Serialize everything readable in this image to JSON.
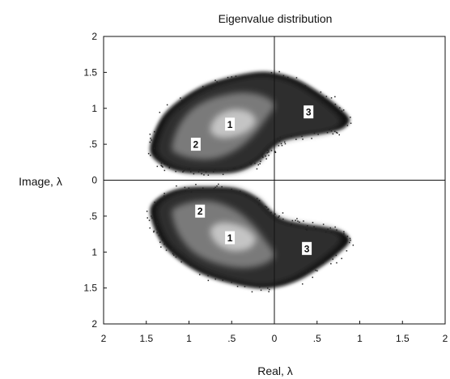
{
  "chart_data": {
    "type": "heatmap",
    "title": "Eigenvalue distribution",
    "xlabel": "Real, λ",
    "ylabel": "Image, λ",
    "xlim": [
      -2,
      2
    ],
    "ylim": [
      -2,
      2
    ],
    "x_tick_values": [
      -2,
      -1.5,
      -1,
      -0.5,
      0,
      0.5,
      1,
      1.5,
      2
    ],
    "x_tick_labels": [
      "2",
      "1.5",
      "1",
      ".5",
      "0",
      ".5",
      "1",
      "1.5",
      "2"
    ],
    "y_tick_values": [
      2,
      1.5,
      1,
      0.5,
      0,
      -0.5,
      -1,
      -1.5,
      -2
    ],
    "y_tick_labels": [
      "2",
      "1.5",
      "1",
      ".5",
      "0",
      ".5",
      "1",
      "1.5",
      "2"
    ],
    "grid": false,
    "zero_lines": true,
    "symmetric_about_real_axis": true,
    "colors": {
      "sparse": "#0b0b0b",
      "outer": "#2e2e2e",
      "middle": "#7a7a7a",
      "inner": "#c4c4c4"
    },
    "density_regions": [
      {
        "label": "1",
        "x": -0.52,
        "y": 0.78
      },
      {
        "label": "2",
        "x": -0.92,
        "y": 0.5
      },
      {
        "label": "3",
        "x": 0.4,
        "y": 0.95
      },
      {
        "label": "2",
        "x": -0.87,
        "y": -0.43
      },
      {
        "label": "1",
        "x": -0.52,
        "y": -0.8
      },
      {
        "label": "3",
        "x": 0.38,
        "y": -0.95
      }
    ]
  }
}
